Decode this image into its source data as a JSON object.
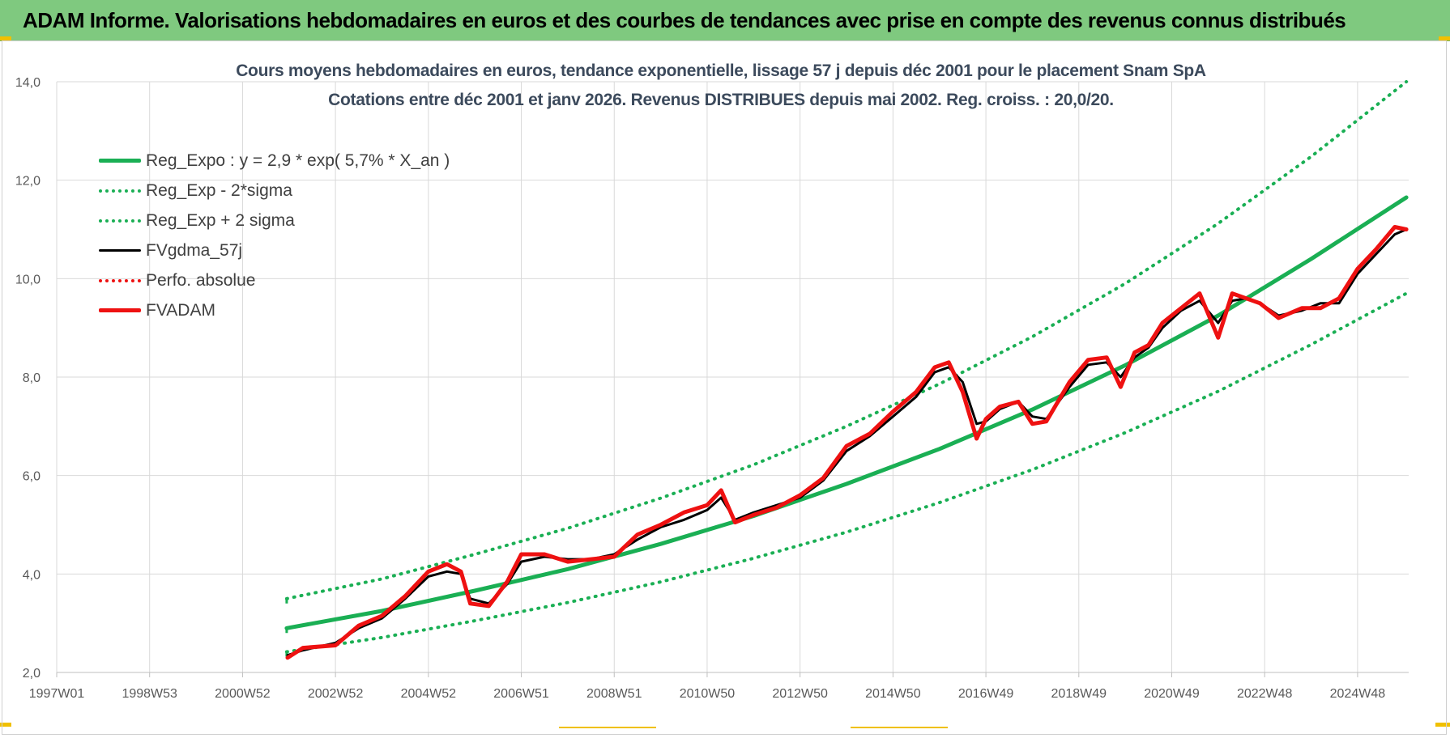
{
  "banner": {
    "title": "ADAM Informe. Valorisations hebdomadaires en euros et des courbes de tendances avec prise en compte des revenus connus distribués"
  },
  "colors": {
    "banner_bg": "#7fc97f",
    "reg_expo": "#1aaf54",
    "fvgdma": "#000000",
    "fvadam": "#ee1111",
    "perfo": "#ee1111",
    "title_text": "#3c4a5c"
  },
  "chart_data": {
    "type": "line",
    "title": "Cours moyens hebdomadaires en euros, tendance exponentielle, lissage 57 j depuis déc 2001 pour le placement Snam SpA",
    "subtitle": "Cotations entre déc 2001 et janv 2026.  Revenus DISTRIBUES depuis mai 2002. Reg. croiss. : 20,0/20.",
    "xlabel": "",
    "ylabel": "",
    "xlim": [
      1997.0,
      2026.1
    ],
    "ylim": [
      2.0,
      14.0
    ],
    "y_ticks": [
      "2,0",
      "4,0",
      "6,0",
      "8,0",
      "10,0",
      "12,0",
      "14,0"
    ],
    "y_tick_values": [
      2,
      4,
      6,
      8,
      10,
      12,
      14
    ],
    "x_ticks": [
      "1997W01",
      "1998W53",
      "2000W52",
      "2002W52",
      "2004W52",
      "2006W51",
      "2008W51",
      "2010W50",
      "2012W50",
      "2014W50",
      "2016W49",
      "2018W49",
      "2020W49",
      "2022W48",
      "2024W48"
    ],
    "x_tick_values": [
      1997.0,
      1999.0,
      2001.0,
      2003.0,
      2005.0,
      2007.0,
      2009.0,
      2011.0,
      2013.0,
      2015.0,
      2017.0,
      2019.0,
      2021.0,
      2023.0,
      2025.0
    ],
    "grid": true,
    "legend_position": "top-left",
    "series": [
      {
        "name": "Reg_Expo : y = 2,9 * exp( 5,7% *  X_an )",
        "style": "solid-thick",
        "color": "#1aaf54",
        "x": [
          2001.95,
          2004,
          2006,
          2008,
          2010,
          2012,
          2014,
          2016,
          2018,
          2020,
          2022,
          2024,
          2026.05
        ],
        "values": [
          2.9,
          3.25,
          3.66,
          4.1,
          4.61,
          5.18,
          5.83,
          6.54,
          7.34,
          8.24,
          9.25,
          10.4,
          11.65
        ]
      },
      {
        "name": "Reg_Exp - 2*sigma",
        "style": "dotted",
        "color": "#1aaf54",
        "x": [
          2001.95,
          2004,
          2006,
          2008,
          2010,
          2012,
          2014,
          2016,
          2018,
          2020,
          2022,
          2024,
          2026.05
        ],
        "values": [
          2.42,
          2.71,
          3.05,
          3.42,
          3.84,
          4.32,
          4.85,
          5.45,
          6.12,
          6.87,
          7.71,
          8.66,
          9.7
        ]
      },
      {
        "name": "Reg_Exp + 2 sigma",
        "style": "dotted",
        "color": "#1aaf54",
        "x": [
          2001.95,
          2004,
          2006,
          2008,
          2010,
          2012,
          2014,
          2016,
          2018,
          2020,
          2022,
          2024,
          2026.05
        ],
        "values": [
          3.5,
          3.9,
          4.4,
          4.93,
          5.54,
          6.22,
          7.0,
          7.86,
          8.82,
          9.9,
          11.12,
          12.48,
          14.0
        ]
      },
      {
        "name": "FVgdma_57j",
        "style": "solid",
        "color": "#000000",
        "x": [
          2001.97,
          2002.3,
          2003.0,
          2003.5,
          2004.0,
          2004.5,
          2005.0,
          2005.4,
          2005.7,
          2005.9,
          2006.3,
          2006.7,
          2007.0,
          2007.5,
          2008.0,
          2008.5,
          2009.0,
          2009.5,
          2010.0,
          2010.5,
          2011.0,
          2011.3,
          2011.6,
          2012.0,
          2012.5,
          2013.0,
          2013.5,
          2014.0,
          2014.5,
          2015.0,
          2015.5,
          2015.9,
          2016.2,
          2016.5,
          2016.8,
          2017.0,
          2017.3,
          2017.7,
          2018.0,
          2018.3,
          2018.8,
          2019.2,
          2019.6,
          2019.9,
          2020.2,
          2020.5,
          2020.8,
          2021.2,
          2021.6,
          2022.0,
          2022.3,
          2022.6,
          2022.9,
          2023.3,
          2023.8,
          2024.2,
          2024.6,
          2025.0,
          2025.4,
          2025.8,
          2026.05
        ],
        "values": [
          2.35,
          2.45,
          2.6,
          2.9,
          3.1,
          3.5,
          3.95,
          4.05,
          4.0,
          3.5,
          3.4,
          3.8,
          4.25,
          4.35,
          4.3,
          4.3,
          4.4,
          4.7,
          4.95,
          5.1,
          5.3,
          5.55,
          5.1,
          5.25,
          5.4,
          5.55,
          5.9,
          6.5,
          6.8,
          7.2,
          7.6,
          8.1,
          8.2,
          7.9,
          7.05,
          7.1,
          7.35,
          7.5,
          7.2,
          7.15,
          7.8,
          8.25,
          8.3,
          8.0,
          8.4,
          8.6,
          9.0,
          9.35,
          9.55,
          9.1,
          9.55,
          9.6,
          9.5,
          9.25,
          9.35,
          9.5,
          9.5,
          10.1,
          10.5,
          10.9,
          11.0
        ]
      },
      {
        "name": "Perfo. absolue",
        "style": "dotted",
        "color": "#ee1111",
        "x": [],
        "values": []
      },
      {
        "name": "FVADAM",
        "style": "solid-thick",
        "color": "#ee1111",
        "x": [
          2001.97,
          2002.3,
          2003.0,
          2003.5,
          2004.0,
          2004.5,
          2005.0,
          2005.4,
          2005.7,
          2005.9,
          2006.3,
          2006.7,
          2007.0,
          2007.5,
          2008.0,
          2008.5,
          2009.0,
          2009.5,
          2010.0,
          2010.5,
          2011.0,
          2011.3,
          2011.6,
          2012.0,
          2012.5,
          2013.0,
          2013.5,
          2014.0,
          2014.5,
          2015.0,
          2015.5,
          2015.9,
          2016.2,
          2016.5,
          2016.8,
          2017.0,
          2017.3,
          2017.7,
          2018.0,
          2018.3,
          2018.8,
          2019.2,
          2019.6,
          2019.9,
          2020.2,
          2020.5,
          2020.8,
          2021.2,
          2021.6,
          2022.0,
          2022.3,
          2022.6,
          2022.9,
          2023.3,
          2023.8,
          2024.2,
          2024.6,
          2025.0,
          2025.4,
          2025.8,
          2026.05
        ],
        "values": [
          2.3,
          2.5,
          2.55,
          2.95,
          3.15,
          3.55,
          4.05,
          4.2,
          4.05,
          3.4,
          3.35,
          3.85,
          4.4,
          4.4,
          4.25,
          4.3,
          4.35,
          4.8,
          5.0,
          5.25,
          5.4,
          5.7,
          5.05,
          5.2,
          5.35,
          5.6,
          5.95,
          6.6,
          6.85,
          7.3,
          7.7,
          8.2,
          8.3,
          7.7,
          6.75,
          7.15,
          7.4,
          7.5,
          7.05,
          7.1,
          7.9,
          8.35,
          8.4,
          7.8,
          8.5,
          8.65,
          9.1,
          9.4,
          9.7,
          8.8,
          9.7,
          9.6,
          9.5,
          9.2,
          9.4,
          9.4,
          9.6,
          10.2,
          10.6,
          11.05,
          11.0
        ]
      }
    ]
  }
}
